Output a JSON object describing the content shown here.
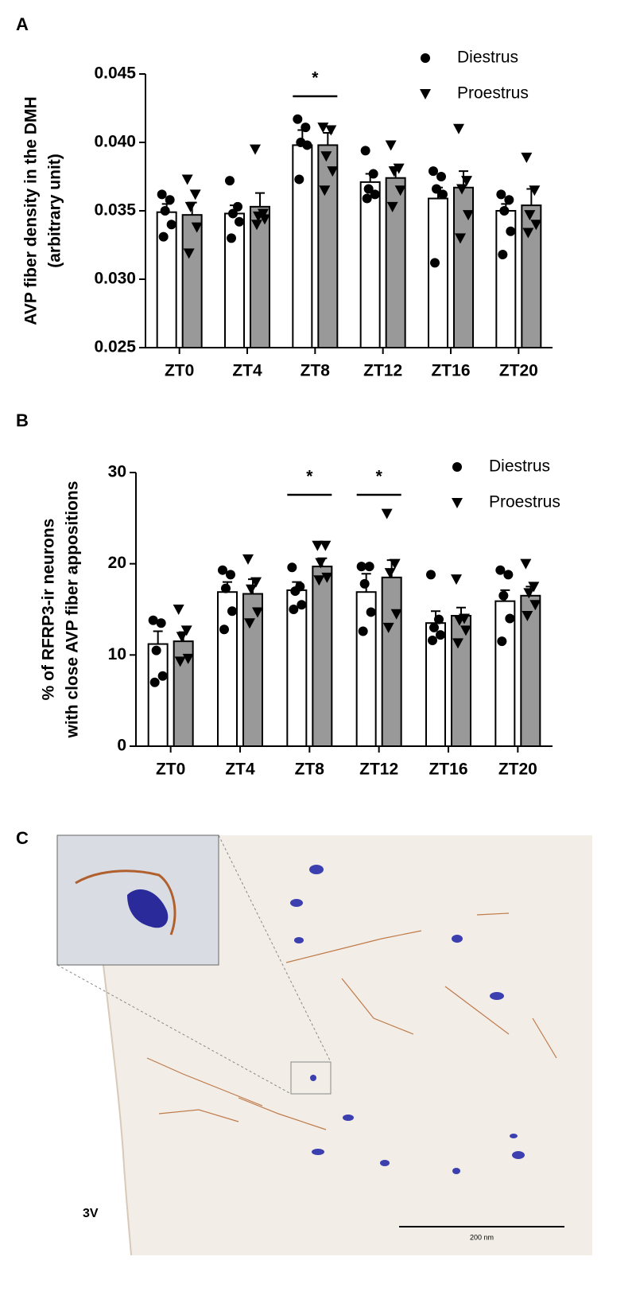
{
  "chart_data": [
    {
      "type": "bar",
      "panel": "A",
      "ylabel": [
        "AVP fiber density in the DMH",
        "(arbitrary unit)"
      ],
      "categories": [
        "ZT0",
        "ZT4",
        "ZT8",
        "ZT12",
        "ZT16",
        "ZT20"
      ],
      "series": [
        {
          "name": "Diestrus",
          "color": "#ffffff",
          "marker": "circle",
          "values": [
            0.0349,
            0.0348,
            0.0398,
            0.0371,
            0.0359,
            0.035
          ],
          "errors": [
            0.0006,
            0.0006,
            0.0011,
            0.0006,
            0.0008,
            0.0005
          ],
          "points": [
            [
              0.0362,
              0.0358,
              0.035,
              0.034,
              0.0331
            ],
            [
              0.0372,
              0.0353,
              0.0348,
              0.0342,
              0.033
            ],
            [
              0.0417,
              0.0411,
              0.04,
              0.0398,
              0.0373
            ],
            [
              0.0394,
              0.0377,
              0.0366,
              0.0362,
              0.0359
            ],
            [
              0.0379,
              0.0375,
              0.0366,
              0.0362,
              0.0312
            ],
            [
              0.0362,
              0.0358,
              0.035,
              0.0335,
              0.0318
            ]
          ]
        },
        {
          "name": "Proestrus",
          "color": "#999999",
          "marker": "triangle",
          "values": [
            0.0347,
            0.0353,
            0.0398,
            0.0374,
            0.0367,
            0.0354
          ],
          "errors": [
            0.0009,
            0.001,
            0.0009,
            0.0008,
            0.0012,
            0.0012
          ],
          "points": [
            [
              0.0373,
              0.0362,
              0.0353,
              0.0338,
              0.0319
            ],
            [
              0.0395,
              0.0348,
              0.0346,
              0.0344,
              0.034
            ],
            [
              0.0411,
              0.0409,
              0.039,
              0.0379,
              0.0365
            ],
            [
              0.0398,
              0.0381,
              0.0379,
              0.0365,
              0.0353
            ],
            [
              0.041,
              0.0372,
              0.0366,
              0.0347,
              0.033
            ],
            [
              0.0389,
              0.0365,
              0.0347,
              0.034,
              0.0334
            ]
          ]
        }
      ],
      "ylim": [
        0.025,
        0.045
      ],
      "yticks": [
        0.025,
        {
          "value": 0.03,
          "label": "0.030"
        },
        0.035,
        {
          "value": 0.04,
          "label": "0.040"
        },
        0.045
      ],
      "significance": [
        {
          "label": "*",
          "category": "ZT8"
        }
      ],
      "legend": "upper right"
    },
    {
      "type": "bar",
      "panel": "B",
      "ylabel": [
        "% of RFRP3-ir neurons",
        "with close AVP fiber appositions"
      ],
      "categories": [
        "ZT0",
        "ZT4",
        "ZT8",
        "ZT12",
        "ZT16",
        "ZT20"
      ],
      "series": [
        {
          "name": "Diestrus",
          "color": "#ffffff",
          "marker": "circle",
          "values": [
            11.2,
            16.9,
            17.1,
            16.9,
            13.5,
            15.9
          ],
          "errors": [
            1.4,
            1.1,
            0.9,
            2.0,
            1.3,
            1.2
          ],
          "points": [
            [
              13.8,
              13.5,
              10.5,
              7.7,
              7.0
            ],
            [
              19.3,
              18.8,
              17.3,
              14.8,
              12.8
            ],
            [
              19.6,
              17.5,
              17.0,
              15.5,
              15.0
            ],
            [
              19.7,
              19.7,
              17.8,
              14.7,
              12.6
            ],
            [
              18.8,
              13.9,
              13.0,
              12.2,
              11.6
            ],
            [
              19.3,
              18.8,
              16.5,
              14.0,
              11.5
            ]
          ]
        },
        {
          "name": "Proestrus",
          "color": "#999999",
          "marker": "triangle",
          "values": [
            11.5,
            16.7,
            19.7,
            18.5,
            14.3,
            16.5
          ],
          "errors": [
            1.0,
            1.6,
            0.9,
            1.9,
            0.9,
            1.0
          ],
          "points": [
            [
              15.0,
              12.7,
              12.0,
              9.6,
              9.3
            ],
            [
              20.5,
              18.0,
              17.2,
              14.7,
              13.5
            ],
            [
              22.0,
              22.0,
              20.1,
              18.5,
              18.2
            ],
            [
              25.5,
              20.0,
              19.0,
              14.5,
              13.0
            ],
            [
              18.3,
              14.0,
              13.8,
              12.7,
              11.3
            ],
            [
              20.0,
              17.5,
              16.8,
              15.5,
              14.3
            ]
          ]
        }
      ],
      "ylim": [
        0,
        30
      ],
      "yticks": [
        0,
        10,
        20,
        30
      ],
      "significance": [
        {
          "label": "*",
          "category": "ZT8"
        },
        {
          "label": "*",
          "category": "ZT12"
        }
      ],
      "legend": "upper right"
    }
  ],
  "micrograph": {
    "panel": "C",
    "region": "3V",
    "scale_bar": "200  nm"
  }
}
